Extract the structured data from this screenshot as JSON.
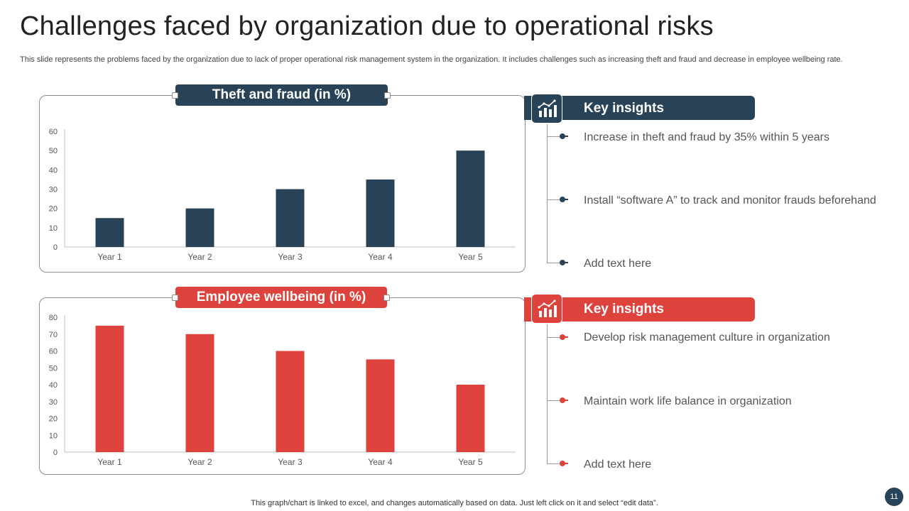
{
  "title": "Challenges faced by organization due to operational risks",
  "subtitle": "This slide represents the problems faced by the organization due to lack of proper operational risk management system in the organization. It includes challenges such as increasing theft and fraud and decrease in employee wellbeing rate.",
  "colors": {
    "navy": "#284357",
    "red": "#DE423C"
  },
  "chart_data": [
    {
      "type": "bar",
      "title": "Theft and fraud (in %)",
      "categories": [
        "Year 1",
        "Year 2",
        "Year 3",
        "Year 4",
        "Year 5"
      ],
      "values": [
        15,
        20,
        30,
        35,
        50
      ],
      "ylim": [
        0,
        60
      ],
      "yticks": [
        0,
        10,
        20,
        30,
        40,
        50,
        60
      ],
      "xlabel": "",
      "ylabel": "",
      "grid": false,
      "color": "#284357"
    },
    {
      "type": "bar",
      "title": "Employee wellbeing (in %)",
      "categories": [
        "Year 1",
        "Year 2",
        "Year 3",
        "Year 4",
        "Year 5"
      ],
      "values": [
        75,
        70,
        60,
        55,
        40
      ],
      "ylim": [
        0,
        80
      ],
      "yticks": [
        0,
        10,
        20,
        30,
        40,
        50,
        60,
        70,
        80
      ],
      "xlabel": "",
      "ylabel": "",
      "grid": false,
      "color": "#DE423C"
    }
  ],
  "insights": [
    {
      "heading": "Key insights",
      "icon": "chart-growth-icon",
      "items": [
        "Increase  in theft  and fraud by 35% within 5 years",
        "Install  “software A” to track and monitor frauds beforehand",
        "Add text here"
      ]
    },
    {
      "heading": "Key insights",
      "icon": "chart-growth-icon",
      "items": [
        "Develop risk management  culture  in organization",
        "Maintain work life balance in organization",
        "Add text here"
      ]
    }
  ],
  "footer": "This graph/chart is linked to excel,  and changes automatically based on data. Just left click on it and select “edit data”.",
  "page_number": "11"
}
